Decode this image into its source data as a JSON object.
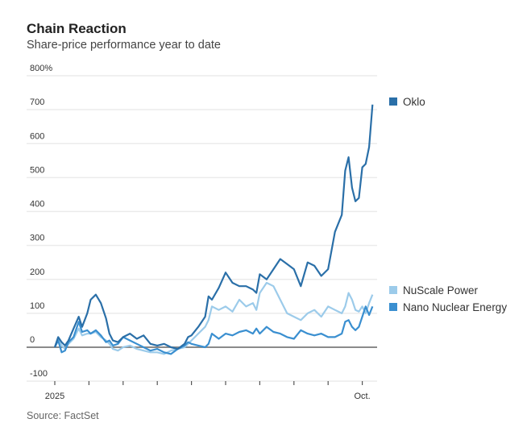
{
  "chart_data": {
    "type": "line",
    "title": "Chain Reaction",
    "subtitle": "Share-price performance year to date",
    "source": "Source: FactSet",
    "xlabel": "",
    "ylabel": "",
    "ylim": [
      -100,
      800
    ],
    "yticks": [
      -100,
      0,
      100,
      200,
      300,
      400,
      500,
      600,
      700,
      800
    ],
    "ytick_labels": [
      "-100",
      "0",
      "100",
      "200",
      "300",
      "400",
      "500",
      "600",
      "700",
      "800%"
    ],
    "x_range_months": [
      0,
      9.3
    ],
    "xtick_months": [
      0,
      1,
      2,
      3,
      4,
      5,
      6,
      7,
      8,
      9
    ],
    "xtick_labels": {
      "0": "2025",
      "9": "Oct."
    },
    "grid": true,
    "legend_placement": "right",
    "series": [
      {
        "name": "Oklo",
        "color": "#2a6fa8",
        "x_months": [
          0,
          0.1,
          0.2,
          0.3,
          0.4,
          0.55,
          0.7,
          0.8,
          0.95,
          1.05,
          1.2,
          1.35,
          1.5,
          1.6,
          1.7,
          1.85,
          2.0,
          2.2,
          2.4,
          2.6,
          2.8,
          3.0,
          3.2,
          3.4,
          3.6,
          3.8,
          3.9,
          4.0,
          4.2,
          4.4,
          4.5,
          4.6,
          4.8,
          5.0,
          5.2,
          5.4,
          5.6,
          5.8,
          5.9,
          6.0,
          6.2,
          6.4,
          6.6,
          6.8,
          7.0,
          7.2,
          7.4,
          7.6,
          7.8,
          8.0,
          8.2,
          8.4,
          8.5,
          8.6,
          8.7,
          8.8,
          8.9,
          9.0,
          9.1,
          9.2,
          9.3
        ],
        "values": [
          0,
          30,
          15,
          5,
          20,
          55,
          90,
          60,
          100,
          140,
          155,
          130,
          85,
          40,
          20,
          15,
          30,
          40,
          25,
          35,
          10,
          5,
          10,
          0,
          -5,
          10,
          30,
          35,
          60,
          90,
          150,
          140,
          175,
          220,
          190,
          180,
          180,
          170,
          160,
          215,
          200,
          230,
          260,
          245,
          230,
          180,
          250,
          240,
          210,
          230,
          340,
          390,
          520,
          560,
          470,
          430,
          440,
          530,
          540,
          590,
          715
        ]
      },
      {
        "name": "NuScale Power",
        "color": "#9ccbea",
        "x_months": [
          0,
          0.1,
          0.2,
          0.3,
          0.4,
          0.55,
          0.7,
          0.8,
          0.95,
          1.05,
          1.2,
          1.35,
          1.5,
          1.6,
          1.7,
          1.85,
          2.0,
          2.2,
          2.4,
          2.6,
          2.8,
          3.0,
          3.2,
          3.4,
          3.6,
          3.8,
          3.9,
          4.0,
          4.2,
          4.4,
          4.5,
          4.6,
          4.8,
          5.0,
          5.2,
          5.4,
          5.6,
          5.8,
          5.9,
          6.0,
          6.2,
          6.4,
          6.6,
          6.8,
          7.0,
          7.2,
          7.4,
          7.6,
          7.8,
          8.0,
          8.2,
          8.4,
          8.5,
          8.6,
          8.7,
          8.8,
          8.9,
          9.0,
          9.1,
          9.2,
          9.3
        ],
        "values": [
          0,
          25,
          5,
          -5,
          10,
          25,
          55,
          35,
          40,
          40,
          45,
          30,
          20,
          10,
          -5,
          -10,
          0,
          5,
          -5,
          -10,
          -15,
          -15,
          -20,
          -10,
          -5,
          0,
          10,
          20,
          40,
          60,
          80,
          120,
          110,
          120,
          105,
          140,
          120,
          130,
          110,
          160,
          190,
          180,
          140,
          100,
          90,
          80,
          100,
          110,
          90,
          120,
          110,
          100,
          120,
          160,
          140,
          110,
          105,
          120,
          100,
          130,
          155
        ]
      },
      {
        "name": "Nano Nuclear Energy",
        "color": "#3a8fd0",
        "x_months": [
          0,
          0.1,
          0.2,
          0.3,
          0.4,
          0.55,
          0.7,
          0.8,
          0.95,
          1.05,
          1.2,
          1.35,
          1.5,
          1.6,
          1.7,
          1.85,
          2.0,
          2.2,
          2.4,
          2.6,
          2.8,
          3.0,
          3.2,
          3.4,
          3.6,
          3.8,
          3.9,
          4.0,
          4.2,
          4.4,
          4.5,
          4.6,
          4.8,
          5.0,
          5.2,
          5.4,
          5.6,
          5.8,
          5.9,
          6.0,
          6.2,
          6.4,
          6.6,
          6.8,
          7.0,
          7.2,
          7.4,
          7.6,
          7.8,
          8.0,
          8.2,
          8.4,
          8.5,
          8.6,
          8.7,
          8.8,
          8.9,
          9.0,
          9.1,
          9.2,
          9.3
        ],
        "values": [
          0,
          20,
          -15,
          -10,
          15,
          30,
          75,
          45,
          50,
          40,
          50,
          35,
          15,
          20,
          5,
          10,
          30,
          20,
          10,
          0,
          -10,
          -5,
          -15,
          -20,
          -5,
          5,
          15,
          10,
          5,
          0,
          10,
          40,
          25,
          40,
          35,
          45,
          50,
          40,
          55,
          40,
          60,
          45,
          40,
          30,
          25,
          50,
          40,
          35,
          40,
          30,
          30,
          40,
          75,
          80,
          60,
          50,
          60,
          90,
          120,
          95,
          120
        ]
      }
    ]
  }
}
